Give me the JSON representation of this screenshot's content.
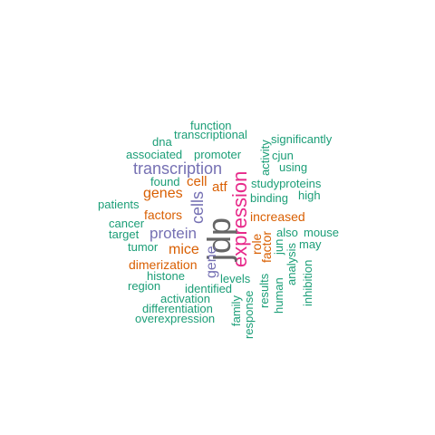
{
  "palette": {
    "teal": "#1b9e77",
    "orange": "#d95f02",
    "purple": "#7570b3",
    "magenta": "#e7298a",
    "gray": "#666666"
  },
  "words": {
    "function": "function",
    "transcriptional": "transcriptional",
    "dna": "dna",
    "significantly": "significantly",
    "associated": "associated",
    "promoter": "promoter",
    "cjun": "cjun",
    "activity": "activity",
    "using": "using",
    "transcription": "transcription",
    "found": "found",
    "cell": "cell",
    "studyproteins": "studyproteins",
    "genes": "genes",
    "atf": "atf",
    "binding": "binding",
    "high": "high",
    "patients": "patients",
    "cells": "cells",
    "expression": "expression",
    "factors": "factors",
    "increased": "increased",
    "jdp": "jdp",
    "cancer": "cancer",
    "target": "target",
    "protein": "protein",
    "role": "role",
    "factor": "factor",
    "jun": "jun",
    "also": "also",
    "mouse": "mouse",
    "tumor": "tumor",
    "mice": "mice",
    "may": "may",
    "dimerization": "dimerization",
    "gene": "gene",
    "analysis": "analysis",
    "histone": "histone",
    "levels": "levels",
    "region": "region",
    "identified": "identified",
    "inhibition": "inhibition",
    "activation": "activation",
    "results": "results",
    "human": "human",
    "family": "family",
    "differentiation": "differentiation",
    "response": "response",
    "overexpression": "overexpression"
  }
}
